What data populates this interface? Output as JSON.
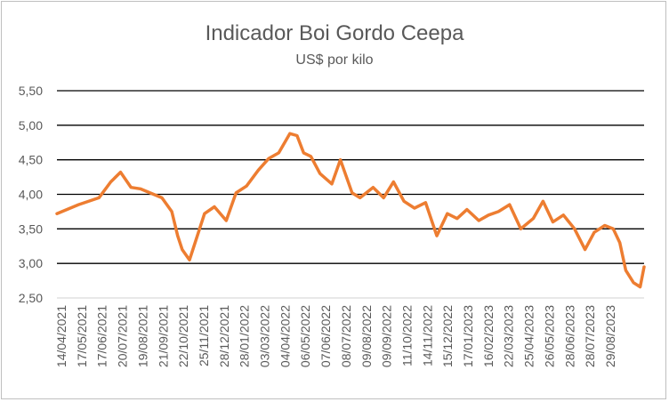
{
  "chart_data": {
    "type": "line",
    "title": "Indicador Boi Gordo Ceepa",
    "subtitle": "US$ por kilo",
    "xlabel": "",
    "ylabel": "",
    "ylim": [
      2.5,
      5.5
    ],
    "y_ticks": [
      "2,50",
      "3,00",
      "3,50",
      "4,00",
      "4,50",
      "5,00",
      "5,50"
    ],
    "y_tick_values": [
      2.5,
      3.0,
      3.5,
      4.0,
      4.5,
      5.0,
      5.5
    ],
    "x_tick_labels": [
      "14/04/2021",
      "17/05/2021",
      "17/06/2021",
      "20/07/2021",
      "19/08/2021",
      "21/09/2021",
      "22/10/2021",
      "25/11/2021",
      "28/12/2021",
      "28/01/2022",
      "03/03/2022",
      "04/04/2022",
      "06/05/2022",
      "07/06/2022",
      "08/07/2022",
      "09/08/2022",
      "09/09/2022",
      "11/10/2022",
      "14/11/2022",
      "15/12/2022",
      "17/01/2023",
      "16/02/2023",
      "22/03/2023",
      "25/04/2023",
      "26/05/2023",
      "28/06/2023",
      "28/07/2023",
      "29/08/2023"
    ],
    "grid": true,
    "legend": "none",
    "line_color": "#ED7D31",
    "series": [
      {
        "x": [
          "2021-04-14",
          "2021-05-17",
          "2021-06-17",
          "2021-07-05",
          "2021-07-20",
          "2021-08-05",
          "2021-08-19",
          "2021-09-21",
          "2021-10-06",
          "2021-10-15",
          "2021-10-22",
          "2021-11-02",
          "2021-11-25",
          "2021-12-10",
          "2021-12-28",
          "2022-01-12",
          "2022-01-28",
          "2022-02-15",
          "2022-03-03",
          "2022-03-18",
          "2022-04-04",
          "2022-04-15",
          "2022-04-25",
          "2022-05-06",
          "2022-05-20",
          "2022-06-07",
          "2022-06-20",
          "2022-07-08",
          "2022-07-20",
          "2022-08-09",
          "2022-08-25",
          "2022-09-09",
          "2022-09-25",
          "2022-10-11",
          "2022-10-28",
          "2022-11-14",
          "2022-11-30",
          "2022-12-15",
          "2022-12-30",
          "2023-01-17",
          "2023-02-01",
          "2023-02-16",
          "2023-03-05",
          "2023-03-22",
          "2023-04-10",
          "2023-04-25",
          "2023-05-10",
          "2023-05-26",
          "2023-06-12",
          "2023-06-28",
          "2023-07-12",
          "2023-07-28",
          "2023-08-10",
          "2023-08-20",
          "2023-08-29",
          "2023-09-10",
          "2023-09-20",
          "2023-09-26"
        ],
        "y": [
          3.72,
          3.85,
          3.95,
          4.18,
          4.32,
          4.1,
          4.08,
          3.95,
          3.75,
          3.4,
          3.2,
          3.05,
          3.72,
          3.82,
          3.62,
          4.02,
          4.12,
          4.35,
          4.52,
          4.6,
          4.88,
          4.85,
          4.6,
          4.55,
          4.3,
          4.15,
          4.5,
          4.02,
          3.95,
          4.1,
          3.95,
          4.18,
          3.9,
          3.8,
          3.88,
          3.4,
          3.72,
          3.65,
          3.78,
          3.62,
          3.7,
          3.75,
          3.85,
          3.5,
          3.65,
          3.9,
          3.6,
          3.7,
          3.5,
          3.2,
          3.45,
          3.55,
          3.5,
          3.3,
          2.9,
          2.72,
          2.66,
          2.95
        ]
      }
    ]
  }
}
